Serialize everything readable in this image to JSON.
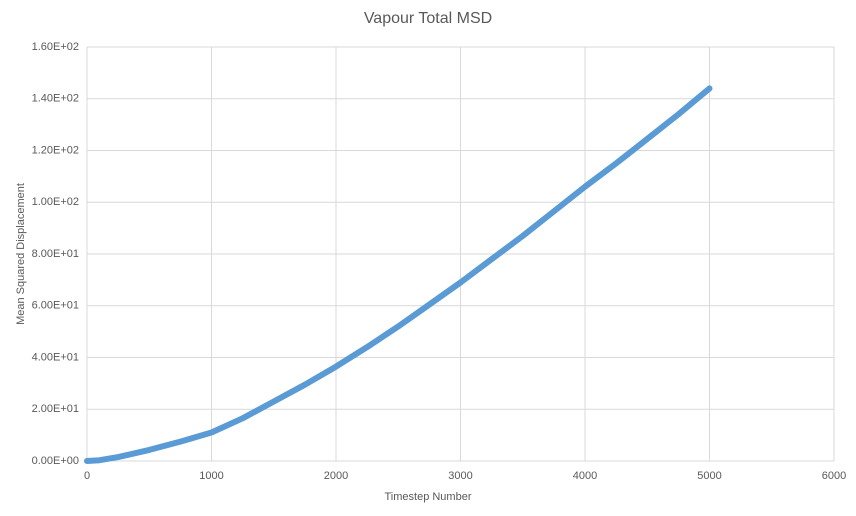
{
  "chart_data": {
    "type": "line",
    "title": "Vapour Total MSD",
    "x_label": "Timestep Number",
    "y_label": "Mean Squared Displacement",
    "x": [
      0,
      100,
      250,
      500,
      750,
      1000,
      1250,
      1500,
      1750,
      2000,
      2250,
      2500,
      2750,
      3000,
      3250,
      3500,
      3750,
      4000,
      4250,
      4500,
      4750,
      5000
    ],
    "values": [
      0,
      0.3,
      1.5,
      4.3,
      7.5,
      11,
      16.5,
      23,
      29.5,
      36.5,
      44,
      52,
      60.5,
      69,
      78,
      87,
      96.5,
      106,
      115,
      124.5,
      134,
      144
    ],
    "color": "#5b9bd5",
    "xlim": [
      0,
      6000
    ],
    "xticks": [
      0,
      1000,
      2000,
      3000,
      4000,
      5000,
      6000
    ],
    "ylim": [
      0,
      160
    ],
    "yticks": [
      {
        "value": 0,
        "label": "0.00E+00"
      },
      {
        "value": 20,
        "label": "2.00E+01"
      },
      {
        "value": 40,
        "label": "4.00E+01"
      },
      {
        "value": 60,
        "label": "6.00E+01"
      },
      {
        "value": 80,
        "label": "8.00E+01"
      },
      {
        "value": 100,
        "label": "1.00E+02"
      },
      {
        "value": 120,
        "label": "1.20E+02"
      },
      {
        "value": 140,
        "label": "1.40E+02"
      },
      {
        "value": 160,
        "label": "1.60E+02"
      }
    ],
    "grid": true
  }
}
